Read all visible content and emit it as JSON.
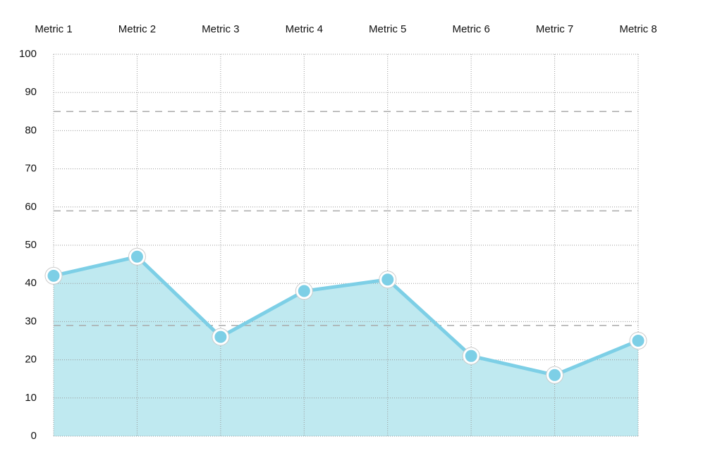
{
  "chart_data": {
    "type": "area",
    "categories": [
      "Metric 1",
      "Metric 2",
      "Metric 3",
      "Metric 4",
      "Metric 5",
      "Metric 6",
      "Metric 7",
      "Metric 8"
    ],
    "values": [
      42,
      47,
      26,
      38,
      41,
      21,
      16,
      25
    ],
    "color": "#7dcfe6",
    "fill_color": "#bfe9f0",
    "ylim": [
      0,
      100
    ],
    "yticks": [
      0,
      10,
      20,
      30,
      40,
      50,
      60,
      70,
      80,
      90,
      100
    ],
    "grid": true,
    "reference_lines": [
      85,
      59,
      29
    ]
  }
}
